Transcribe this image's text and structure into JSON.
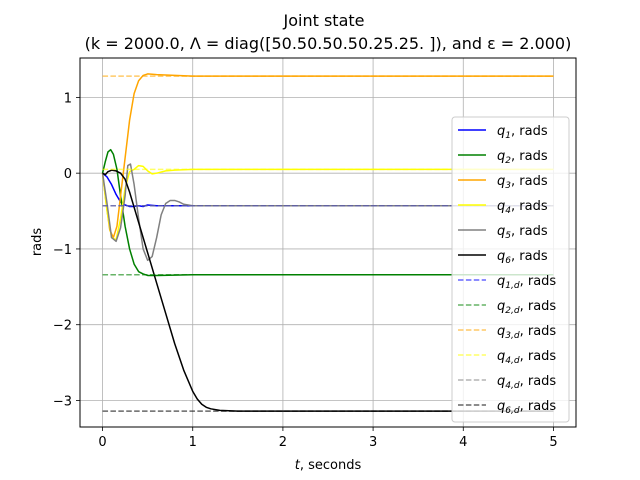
{
  "chart_data": {
    "type": "line",
    "title": "Joint state",
    "subtitle": "(k = 2000.0, Λ = diag([50.50.50.50.25.25. ]), and ε = 2.000)",
    "xlabel_var": "t",
    "xlabel_rest": ", seconds",
    "ylabel": "rads",
    "xlim": [
      -0.25,
      5.25
    ],
    "ylim": [
      -3.35,
      1.52
    ],
    "xticks": [
      0,
      1,
      2,
      3,
      4,
      5
    ],
    "xtick_labels": [
      "0",
      "1",
      "2",
      "3",
      "4",
      "5"
    ],
    "yticks": [
      1,
      0,
      -1,
      -2,
      -3
    ],
    "ytick_labels": [
      "1",
      "0",
      "−1",
      "−2",
      "−3"
    ],
    "grid": true,
    "legend_position": "right",
    "series": [
      {
        "name_var": "q",
        "name_sub": "1",
        "name_rest": ", rads",
        "color": "#0000ff",
        "dashed": false,
        "alpha": 1,
        "points": [
          [
            0,
            0
          ],
          [
            0.05,
            -0.05
          ],
          [
            0.1,
            -0.15
          ],
          [
            0.15,
            -0.28
          ],
          [
            0.2,
            -0.38
          ],
          [
            0.25,
            -0.42
          ],
          [
            0.3,
            -0.44
          ],
          [
            0.35,
            -0.44
          ],
          [
            0.4,
            -0.43
          ],
          [
            0.45,
            -0.44
          ],
          [
            0.5,
            -0.42
          ],
          [
            0.6,
            -0.43
          ],
          [
            0.8,
            -0.43
          ],
          [
            1.0,
            -0.43
          ],
          [
            5,
            -0.43
          ]
        ]
      },
      {
        "name_var": "q",
        "name_sub": "2",
        "name_rest": ", rads",
        "color": "#008000",
        "dashed": false,
        "alpha": 1,
        "points": [
          [
            0,
            0
          ],
          [
            0.03,
            0.15
          ],
          [
            0.06,
            0.28
          ],
          [
            0.09,
            0.31
          ],
          [
            0.12,
            0.25
          ],
          [
            0.16,
            0.05
          ],
          [
            0.2,
            -0.3
          ],
          [
            0.25,
            -0.7
          ],
          [
            0.3,
            -1.0
          ],
          [
            0.35,
            -1.2
          ],
          [
            0.4,
            -1.3
          ],
          [
            0.45,
            -1.33
          ],
          [
            0.5,
            -1.35
          ],
          [
            0.6,
            -1.35
          ],
          [
            1.0,
            -1.34
          ],
          [
            5,
            -1.34
          ]
        ]
      },
      {
        "name_var": "q",
        "name_sub": "3",
        "name_rest": ", rads",
        "color": "#ffa500",
        "dashed": false,
        "alpha": 1,
        "points": [
          [
            0,
            0
          ],
          [
            0.04,
            -0.4
          ],
          [
            0.08,
            -0.75
          ],
          [
            0.12,
            -0.85
          ],
          [
            0.16,
            -0.7
          ],
          [
            0.2,
            -0.3
          ],
          [
            0.25,
            0.2
          ],
          [
            0.3,
            0.7
          ],
          [
            0.35,
            1.05
          ],
          [
            0.4,
            1.22
          ],
          [
            0.45,
            1.29
          ],
          [
            0.5,
            1.31
          ],
          [
            0.6,
            1.3
          ],
          [
            0.8,
            1.29
          ],
          [
            1.0,
            1.28
          ],
          [
            5,
            1.28
          ]
        ]
      },
      {
        "name_var": "q",
        "name_sub": "4",
        "name_rest": ", rads",
        "color": "#ffff00",
        "dashed": false,
        "alpha": 1,
        "points": [
          [
            0,
            0
          ],
          [
            0.05,
            -0.5
          ],
          [
            0.1,
            -0.85
          ],
          [
            0.15,
            -0.88
          ],
          [
            0.2,
            -0.6
          ],
          [
            0.25,
            -0.2
          ],
          [
            0.3,
            0.02
          ],
          [
            0.35,
            0.05
          ],
          [
            0.4,
            0.1
          ],
          [
            0.45,
            0.09
          ],
          [
            0.5,
            0.03
          ],
          [
            0.55,
            -0.01
          ],
          [
            0.6,
            0.0
          ],
          [
            0.7,
            0.03
          ],
          [
            0.8,
            0.04
          ],
          [
            1.0,
            0.05
          ],
          [
            5,
            0.05
          ]
        ]
      },
      {
        "name_var": "q",
        "name_sub": "5",
        "name_rest": ", rads",
        "color": "#808080",
        "dashed": false,
        "alpha": 1,
        "points": [
          [
            0,
            0
          ],
          [
            0.05,
            -0.4
          ],
          [
            0.1,
            -0.85
          ],
          [
            0.15,
            -0.9
          ],
          [
            0.2,
            -0.72
          ],
          [
            0.25,
            -0.3
          ],
          [
            0.28,
            0.1
          ],
          [
            0.31,
            0.12
          ],
          [
            0.35,
            -0.15
          ],
          [
            0.4,
            -0.6
          ],
          [
            0.45,
            -1.0
          ],
          [
            0.5,
            -1.15
          ],
          [
            0.55,
            -1.1
          ],
          [
            0.6,
            -0.85
          ],
          [
            0.65,
            -0.55
          ],
          [
            0.7,
            -0.4
          ],
          [
            0.75,
            -0.36
          ],
          [
            0.8,
            -0.36
          ],
          [
            0.85,
            -0.38
          ],
          [
            0.9,
            -0.41
          ],
          [
            1.0,
            -0.43
          ],
          [
            5,
            -0.43
          ]
        ]
      },
      {
        "name_var": "q",
        "name_sub": "6",
        "name_rest": ", rads",
        "color": "#000000",
        "dashed": false,
        "alpha": 1,
        "points": [
          [
            0,
            0
          ],
          [
            0.03,
            -0.02
          ],
          [
            0.06,
            0.02
          ],
          [
            0.1,
            0.04
          ],
          [
            0.15,
            0.03
          ],
          [
            0.2,
            0.0
          ],
          [
            0.25,
            -0.08
          ],
          [
            0.3,
            -0.25
          ],
          [
            0.4,
            -0.65
          ],
          [
            0.5,
            -1.05
          ],
          [
            0.6,
            -1.45
          ],
          [
            0.7,
            -1.85
          ],
          [
            0.8,
            -2.25
          ],
          [
            0.9,
            -2.6
          ],
          [
            1.0,
            -2.88
          ],
          [
            1.05,
            -2.98
          ],
          [
            1.1,
            -3.05
          ],
          [
            1.15,
            -3.09
          ],
          [
            1.2,
            -3.11
          ],
          [
            1.3,
            -3.13
          ],
          [
            1.5,
            -3.14
          ],
          [
            5,
            -3.14
          ]
        ]
      },
      {
        "name_var": "q",
        "name_sub": "1,d",
        "name_rest": ", rads",
        "color": "#0000ff",
        "dashed": true,
        "alpha": 0.6,
        "points": [
          [
            0,
            -0.43
          ],
          [
            5,
            -0.43
          ]
        ]
      },
      {
        "name_var": "q",
        "name_sub": "2,d",
        "name_rest": ", rads",
        "color": "#008000",
        "dashed": true,
        "alpha": 0.6,
        "points": [
          [
            0,
            -1.34
          ],
          [
            5,
            -1.34
          ]
        ]
      },
      {
        "name_var": "q",
        "name_sub": "3,d",
        "name_rest": ", rads",
        "color": "#ffa500",
        "dashed": true,
        "alpha": 0.6,
        "points": [
          [
            0,
            1.28
          ],
          [
            5,
            1.28
          ]
        ]
      },
      {
        "name_var": "q",
        "name_sub": "4,d",
        "name_rest": ", rads",
        "color": "#ffff00",
        "dashed": true,
        "alpha": 0.6,
        "points": [
          [
            0,
            0.05
          ],
          [
            5,
            0.05
          ]
        ]
      },
      {
        "name_var": "q",
        "name_sub": "4,d",
        "name_rest": ", rads",
        "color": "#808080",
        "dashed": true,
        "alpha": 0.6,
        "points": [
          [
            0,
            -0.43
          ],
          [
            5,
            -0.43
          ]
        ]
      },
      {
        "name_var": "q",
        "name_sub": "6,d",
        "name_rest": ", rads",
        "color": "#000000",
        "dashed": true,
        "alpha": 0.6,
        "points": [
          [
            0,
            -3.14
          ],
          [
            5,
            -3.14
          ]
        ]
      }
    ]
  }
}
